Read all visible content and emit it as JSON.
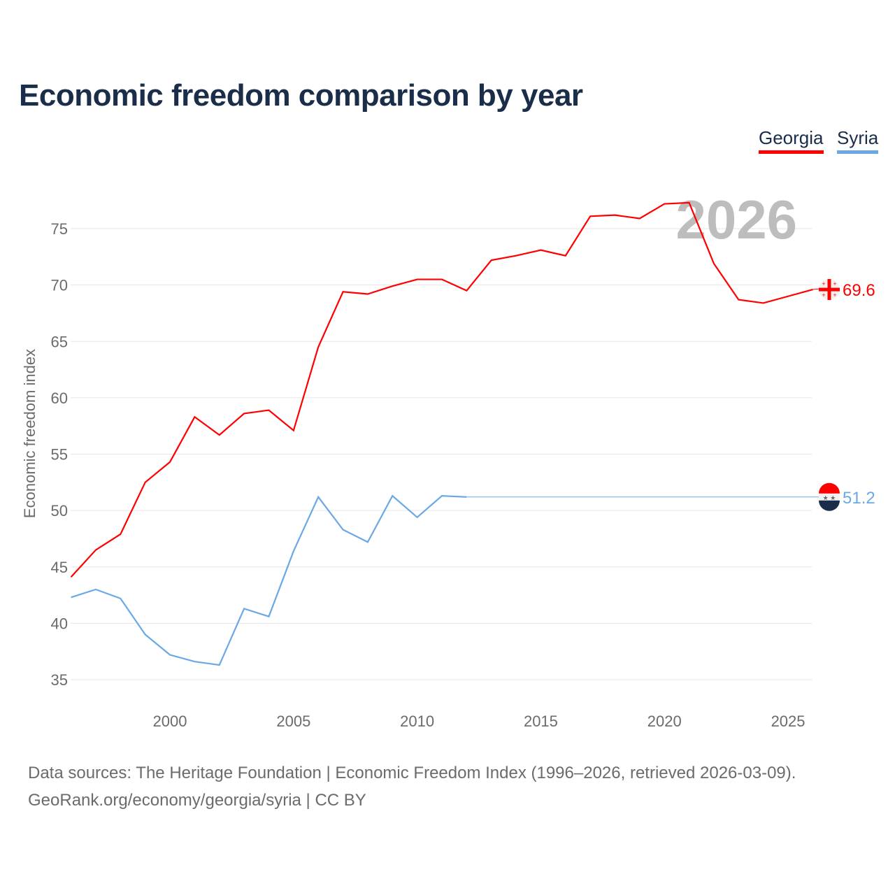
{
  "title": "Economic freedom comparison by year",
  "footer": {
    "line1": "Data sources: The Heritage Foundation | Economic Freedom Index (1996–2026, retrieved 2026-03-09).",
    "line2": "GeoRank.org/economy/georgia/syria | CC BY"
  },
  "chart_data": {
    "type": "line",
    "title": "Economic freedom comparison by year",
    "xlabel": "",
    "ylabel": "Economic freedom index",
    "year_label": "2026",
    "xlim": [
      1996,
      2026
    ],
    "ylim": [
      33,
      78
    ],
    "xticks": [
      2000,
      2005,
      2010,
      2015,
      2020,
      2025
    ],
    "yticks": [
      35,
      40,
      45,
      50,
      55,
      60,
      65,
      70,
      75
    ],
    "grid": true,
    "legend_position": "top-right",
    "x": [
      1996,
      1997,
      1998,
      1999,
      2000,
      2001,
      2002,
      2003,
      2004,
      2005,
      2006,
      2007,
      2008,
      2009,
      2010,
      2011,
      2012,
      2013,
      2014,
      2015,
      2016,
      2017,
      2018,
      2019,
      2020,
      2021,
      2022,
      2023,
      2024,
      2025,
      2026
    ],
    "series": [
      {
        "name": "Georgia",
        "color": "#ff0000",
        "end_label": "69.6",
        "icon": "georgia-flag-icon",
        "values": [
          44.1,
          46.5,
          47.9,
          52.5,
          54.3,
          58.3,
          56.7,
          58.6,
          58.9,
          57.1,
          64.5,
          69.4,
          69.2,
          69.9,
          70.5,
          70.5,
          69.5,
          72.2,
          72.6,
          73.1,
          72.6,
          76.1,
          76.2,
          75.9,
          77.2,
          77.3,
          71.9,
          68.7,
          68.4,
          69.0,
          69.6
        ]
      },
      {
        "name": "Syria",
        "color": "#6aa8e6",
        "end_label": "51.2",
        "icon": "syria-flag-icon",
        "carry_forward_after": 2012,
        "values": [
          42.3,
          43.0,
          42.2,
          39.0,
          37.2,
          36.6,
          36.3,
          41.3,
          40.6,
          46.4,
          51.2,
          48.3,
          47.2,
          51.3,
          49.4,
          51.3,
          51.2,
          null,
          null,
          null,
          null,
          null,
          null,
          null,
          null,
          null,
          null,
          null,
          null,
          null,
          51.2
        ]
      }
    ]
  }
}
